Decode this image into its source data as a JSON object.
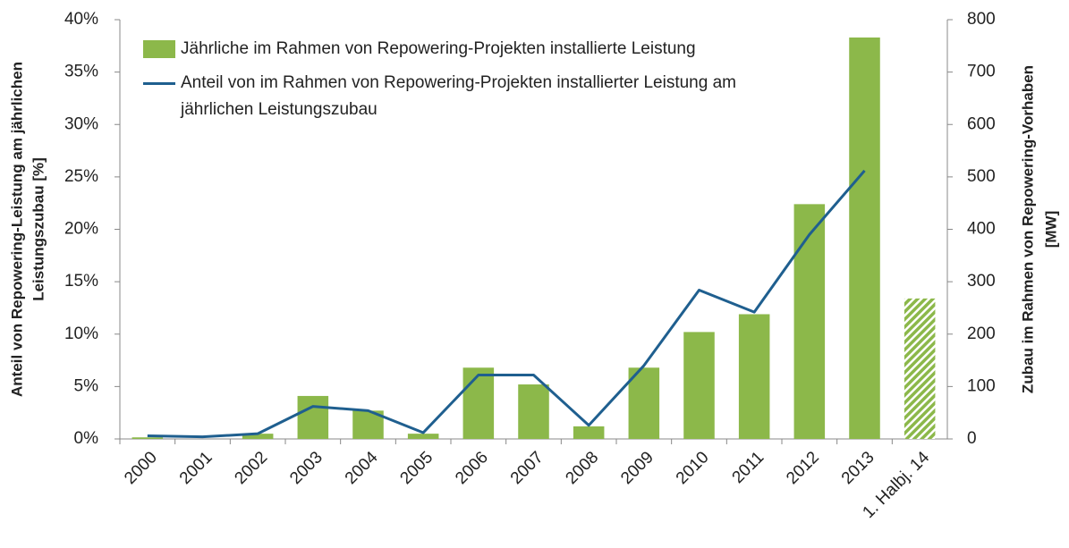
{
  "chart_data": {
    "type": "bar_line",
    "categories": [
      "2000",
      "2001",
      "2002",
      "2003",
      "2004",
      "2005",
      "2006",
      "2007",
      "2008",
      "2009",
      "2010",
      "2011",
      "2012",
      "2013",
      "1. Halbj. 14"
    ],
    "series": [
      {
        "name": "Jährliche im Rahmen von Repowering-Projekten installierte Leistung",
        "type": "bar",
        "axis": "y2",
        "color": "#8cb84a",
        "values": [
          3,
          0,
          10,
          82,
          54,
          10,
          136,
          104,
          24,
          136,
          204,
          238,
          448,
          766,
          268
        ],
        "hatched": [
          false,
          false,
          false,
          false,
          false,
          false,
          false,
          false,
          false,
          false,
          false,
          false,
          false,
          false,
          true
        ]
      },
      {
        "name": "Anteil von im Rahmen von Repowering-Projekten installierter Leistung am jährlichen Leistungszubau",
        "type": "line",
        "axis": "y",
        "color": "#1f5f8f",
        "values": [
          0.3,
          0.2,
          0.5,
          3.1,
          2.7,
          0.6,
          6.1,
          6.1,
          1.3,
          7.0,
          14.2,
          12.1,
          19.5,
          25.6,
          null
        ]
      }
    ],
    "ylabel": [
      "Anteil von Repowering-Leistung am jährlichen",
      "Leistungszubau [%]"
    ],
    "y2label": [
      "Zubau im Rahmen von Repowering-Vorhaben",
      "[MW]"
    ],
    "ylim": [
      0,
      40
    ],
    "yticks": [
      {
        "value": 0,
        "label": "0%"
      },
      {
        "value": 5,
        "label": "5%"
      },
      {
        "value": 10,
        "label": "10%"
      },
      {
        "value": 15,
        "label": "15%"
      },
      {
        "value": 20,
        "label": "20%"
      },
      {
        "value": 25,
        "label": "25%"
      },
      {
        "value": 30,
        "label": "30%"
      },
      {
        "value": 35,
        "label": "35%"
      },
      {
        "value": 40,
        "label": "40%"
      }
    ],
    "y2lim": [
      0,
      800
    ],
    "y2ticks": [
      0,
      100,
      200,
      300,
      400,
      500,
      600,
      700,
      800
    ]
  }
}
